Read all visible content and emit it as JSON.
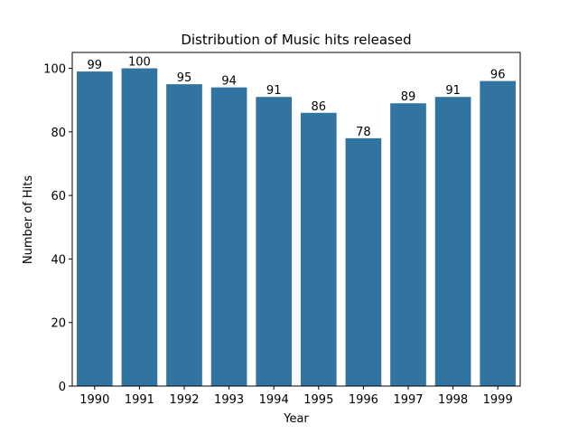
{
  "chart_data": {
    "type": "bar",
    "title": "Distribution of Music hits released",
    "xlabel": "Year",
    "ylabel": "Number of Hits",
    "categories": [
      "1990",
      "1991",
      "1992",
      "1993",
      "1994",
      "1995",
      "1996",
      "1997",
      "1998",
      "1999"
    ],
    "values": [
      99,
      100,
      95,
      94,
      91,
      86,
      78,
      89,
      91,
      96
    ],
    "value_labels": [
      "99",
      "100",
      "95",
      "94",
      "91",
      "86",
      "78",
      "89",
      "91",
      "96"
    ],
    "ylim": [
      0,
      105
    ],
    "yticks": [
      0,
      20,
      40,
      60,
      80,
      100
    ],
    "ytick_labels": [
      "0",
      "20",
      "40",
      "60",
      "80",
      "100"
    ],
    "bar_color": "#3274a1",
    "grid": false,
    "legend": false
  }
}
